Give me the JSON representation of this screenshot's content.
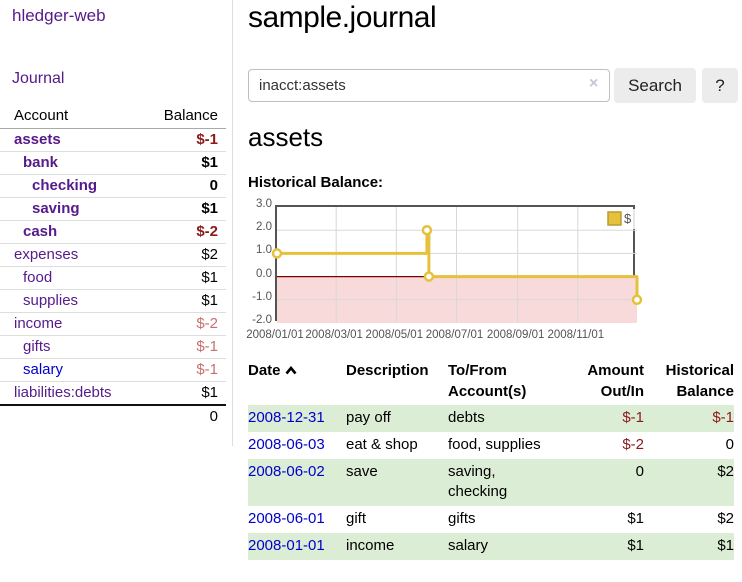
{
  "app": {
    "brand": "hledger-web"
  },
  "nav": {
    "journal": "Journal"
  },
  "sidebar": {
    "header": {
      "account": "Account",
      "balance": "Balance"
    },
    "accounts": [
      {
        "name": "assets",
        "balance": "$-1",
        "depth": 0,
        "bold": true,
        "neg": "strong"
      },
      {
        "name": "bank",
        "balance": "$1",
        "depth": 1,
        "bold": true,
        "neg": null
      },
      {
        "name": "checking",
        "balance": "0",
        "depth": 2,
        "bold": true,
        "neg": null
      },
      {
        "name": "saving",
        "balance": "$1",
        "depth": 2,
        "bold": true,
        "neg": null
      },
      {
        "name": "cash",
        "balance": "$-2",
        "depth": 1,
        "bold": true,
        "neg": "strong"
      },
      {
        "name": "expenses",
        "balance": "$2",
        "depth": 0,
        "bold": false,
        "neg": null
      },
      {
        "name": "food",
        "balance": "$1",
        "depth": 1,
        "bold": false,
        "neg": null
      },
      {
        "name": "supplies",
        "balance": "$1",
        "depth": 1,
        "bold": false,
        "neg": null
      },
      {
        "name": "income",
        "balance": "$-2",
        "depth": 0,
        "bold": false,
        "neg": "soft"
      },
      {
        "name": "gifts",
        "balance": "$-1",
        "depth": 1,
        "bold": false,
        "neg": "soft"
      },
      {
        "name": "salary",
        "balance": "$-1",
        "depth": 1,
        "bold": false,
        "neg": "soft",
        "link": "blue"
      },
      {
        "name": "liabilities:debts",
        "balance": "$1",
        "depth": 0,
        "bold": false,
        "neg": null
      }
    ],
    "total": "0"
  },
  "header": {
    "title": "sample.journal"
  },
  "search": {
    "value": "inacct:assets",
    "clear_icon": "×",
    "button": "Search",
    "help_button": "?"
  },
  "account_page": {
    "heading": "assets",
    "chart_label": "Historical Balance:"
  },
  "chart_data": {
    "type": "line",
    "title": "Historical Balance",
    "steps": true,
    "series": [
      {
        "name": "$",
        "color": "#e6c13c",
        "points": [
          [
            "2008-01-01",
            1
          ],
          [
            "2008-06-01",
            2
          ],
          [
            "2008-06-03",
            0
          ],
          [
            "2008-12-31",
            -1
          ]
        ]
      }
    ],
    "xlim": [
      "2008-01-01",
      "2008-12-31"
    ],
    "ylim": [
      -2.0,
      3.0
    ],
    "y_ticks": [
      "3.0",
      "2.0",
      "1.0",
      "0.0",
      "-1.0",
      "-2.0"
    ],
    "x_ticks": [
      "2008/01/01",
      "2008/03/01",
      "2008/05/01",
      "2008/07/01",
      "2008/09/01",
      "2008/11/01"
    ],
    "grid": true,
    "grid_color": "#d8d8d8",
    "negative_region_color": "#f9dada",
    "zero_line_color": "#7f0000",
    "legend": {
      "label": "$",
      "position": "top-right"
    }
  },
  "register": {
    "headers": [
      {
        "label": "Date",
        "sorted": "asc"
      },
      {
        "label": "Description"
      },
      {
        "label": "To/From Account(s)"
      },
      {
        "label": "Amount Out/In"
      },
      {
        "label": "Historical Balance"
      }
    ],
    "rows": [
      {
        "date": "2008-12-31",
        "description": "pay off",
        "accounts": "debts",
        "amount": "$-1",
        "amount_neg": true,
        "balance": "$-1",
        "balance_neg": true
      },
      {
        "date": "2008-06-03",
        "description": "eat & shop",
        "accounts": "food, supplies",
        "amount": "$-2",
        "amount_neg": true,
        "balance": "0",
        "balance_neg": false
      },
      {
        "date": "2008-06-02",
        "description": "save",
        "accounts": "saving, checking",
        "amount": "0",
        "amount_neg": false,
        "balance": "$2",
        "balance_neg": false
      },
      {
        "date": "2008-06-01",
        "description": "gift",
        "accounts": "gifts",
        "amount": "$1",
        "amount_neg": false,
        "balance": "$2",
        "balance_neg": false
      },
      {
        "date": "2008-01-01",
        "description": "income",
        "accounts": "salary",
        "amount": "$1",
        "amount_neg": false,
        "balance": "$1",
        "balance_neg": false
      }
    ]
  }
}
